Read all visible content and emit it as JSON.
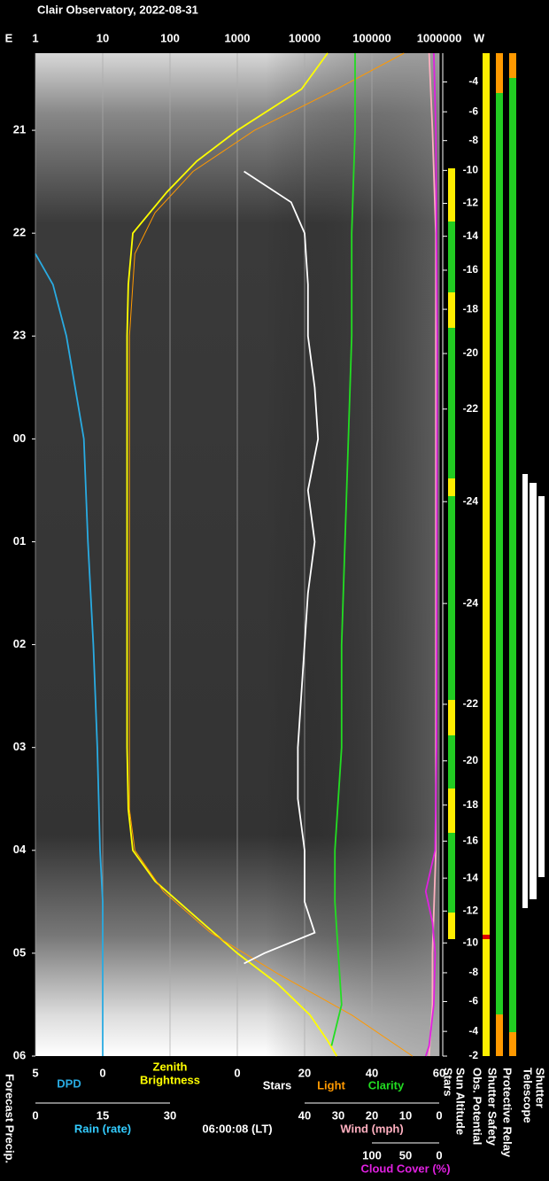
{
  "chart_data": {
    "type": "line",
    "title": "Clair Observatory, 2022-08-31",
    "east_label": "E",
    "west_label": "W",
    "timestamp": "06:00:08 (LT)",
    "forecast_label": "Forecast Precip.",
    "status_labels": [
      "Stars",
      "Sun Altitude",
      "Obs. Potential",
      "Shutter Safety",
      "Protective Relay",
      "Telescope",
      "Shutter"
    ],
    "time_axis": {
      "ylim": [
        20.25,
        30
      ],
      "yticks": [
        21,
        22,
        23,
        {
          "value": 24,
          "label": "00"
        },
        {
          "value": 25,
          "label": "01"
        },
        {
          "value": 26,
          "label": "02"
        },
        {
          "value": 27,
          "label": "03"
        },
        {
          "value": 28,
          "label": "04"
        },
        {
          "value": 29,
          "label": "05"
        },
        {
          "value": 30,
          "label": "06"
        }
      ]
    },
    "axes": {
      "brightness": {
        "xlim": [
          1,
          1000000
        ],
        "xticks": [
          1,
          10,
          100,
          1000,
          10000,
          100000,
          1000000
        ],
        "log": true,
        "grid": true,
        "title": [
          "Zenith",
          "Brightness"
        ],
        "color": "#ffff00"
      },
      "dpd": {
        "xlim": [
          5,
          0
        ],
        "xticks": [
          5,
          0
        ],
        "title": "DPD",
        "color": "#29abe2"
      },
      "stars": {
        "xlim": [
          0,
          60
        ],
        "xticks": [
          0,
          20,
          40,
          60
        ]
      },
      "rain": {
        "xlim": [
          0,
          30
        ],
        "xticks": [
          0,
          15,
          30
        ],
        "title": "Rain (rate)",
        "color": "#33ccff"
      },
      "wind": {
        "xlim": [
          40,
          0
        ],
        "xticks": [
          40,
          30,
          20,
          10,
          0
        ],
        "title": "Wind (mph)",
        "color": "#ffb0c0"
      },
      "cloud": {
        "xlim": [
          100,
          0
        ],
        "xticks": [
          100,
          50,
          0
        ],
        "title": "Cloud Cover (%)",
        "color": "#e020e0"
      }
    },
    "sun_altitude": {
      "x": [
        20.53,
        20.82,
        21.1,
        21.39,
        21.71,
        22.03,
        22.36,
        22.74,
        23.17,
        23.71,
        24.61,
        25.6,
        26.58,
        27.13,
        27.56,
        27.91,
        28.27,
        28.59,
        28.9,
        29.19,
        29.47,
        29.76,
        30
      ],
      "values": [
        -4,
        -6,
        -8,
        -10,
        -12,
        -14,
        -16,
        -18,
        -20,
        -22,
        -24,
        -24,
        -22,
        -20,
        -18,
        -16,
        -14,
        -12,
        -10,
        -8,
        -6,
        -4,
        -2
      ]
    },
    "series": [
      {
        "axis": "brightness",
        "color": "#ffff00",
        "x": [
          20.25,
          20.6,
          21,
          21.3,
          21.6,
          22,
          22.5,
          23,
          25,
          27,
          27.6,
          28,
          28.3,
          28.6,
          29,
          29.3,
          29.6,
          29.85,
          30
        ],
        "values": [
          22000,
          9000,
          1000,
          250,
          90,
          28,
          24,
          23,
          23,
          23,
          24,
          28,
          60,
          200,
          1000,
          4000,
          12000,
          22000,
          30000
        ]
      },
      {
        "name": "Light",
        "axis": "brightness",
        "color": "#ff9900",
        "x": [
          20.25,
          20.6,
          21,
          21.4,
          21.8,
          22.2,
          23,
          27.6,
          28,
          28.4,
          28.8,
          29.2,
          29.6,
          30
        ],
        "values": [
          300000,
          30000,
          1800,
          220,
          60,
          30,
          25,
          25,
          30,
          80,
          400,
          4000,
          50000,
          400000
        ]
      },
      {
        "name": "Stars",
        "axis": "stars",
        "color": "#ffffff",
        "x": [
          21.4,
          21.7,
          22,
          22.5,
          23,
          23.5,
          24,
          24.5,
          25,
          25.5,
          26,
          26.5,
          27,
          27.5,
          28,
          28.5,
          28.8,
          29,
          29.1
        ],
        "values": [
          2,
          16,
          20,
          21,
          21,
          23,
          24,
          21,
          23,
          21,
          20,
          19,
          18,
          18,
          20,
          20,
          23,
          8,
          2
        ]
      },
      {
        "name": "Clarity",
        "axis": "stars",
        "color": "#22dd22",
        "x": [
          20.25,
          21,
          22,
          23,
          24,
          25,
          26,
          27,
          28,
          28.5,
          29,
          29.5,
          29.9
        ],
        "values": [
          35,
          35,
          34,
          34,
          33,
          32,
          31,
          31,
          29,
          29,
          30,
          31,
          28
        ]
      },
      {
        "axis": "wind",
        "color": "#ffb0c0",
        "x": [
          20.25,
          21,
          22,
          23,
          25,
          28,
          29,
          29.5,
          30
        ],
        "values": [
          3,
          2,
          1,
          1,
          1,
          1,
          2,
          2,
          3
        ]
      },
      {
        "axis": "cloud",
        "color": "#e020e0",
        "x": [
          20.25,
          21,
          23,
          27,
          28,
          28.4,
          28.7,
          29,
          29.5,
          29.9,
          30
        ],
        "values": [
          8,
          5,
          3,
          4,
          6,
          20,
          10,
          6,
          8,
          15,
          20
        ]
      },
      {
        "axis": "dpd",
        "color": "#29abe2",
        "x": [
          22.2,
          22.5,
          23,
          24,
          25,
          26,
          27,
          28,
          28.5,
          30
        ],
        "values": [
          5,
          3.7,
          2.7,
          1.4,
          1.1,
          0.7,
          0.4,
          0.2,
          0,
          0
        ]
      }
    ]
  }
}
